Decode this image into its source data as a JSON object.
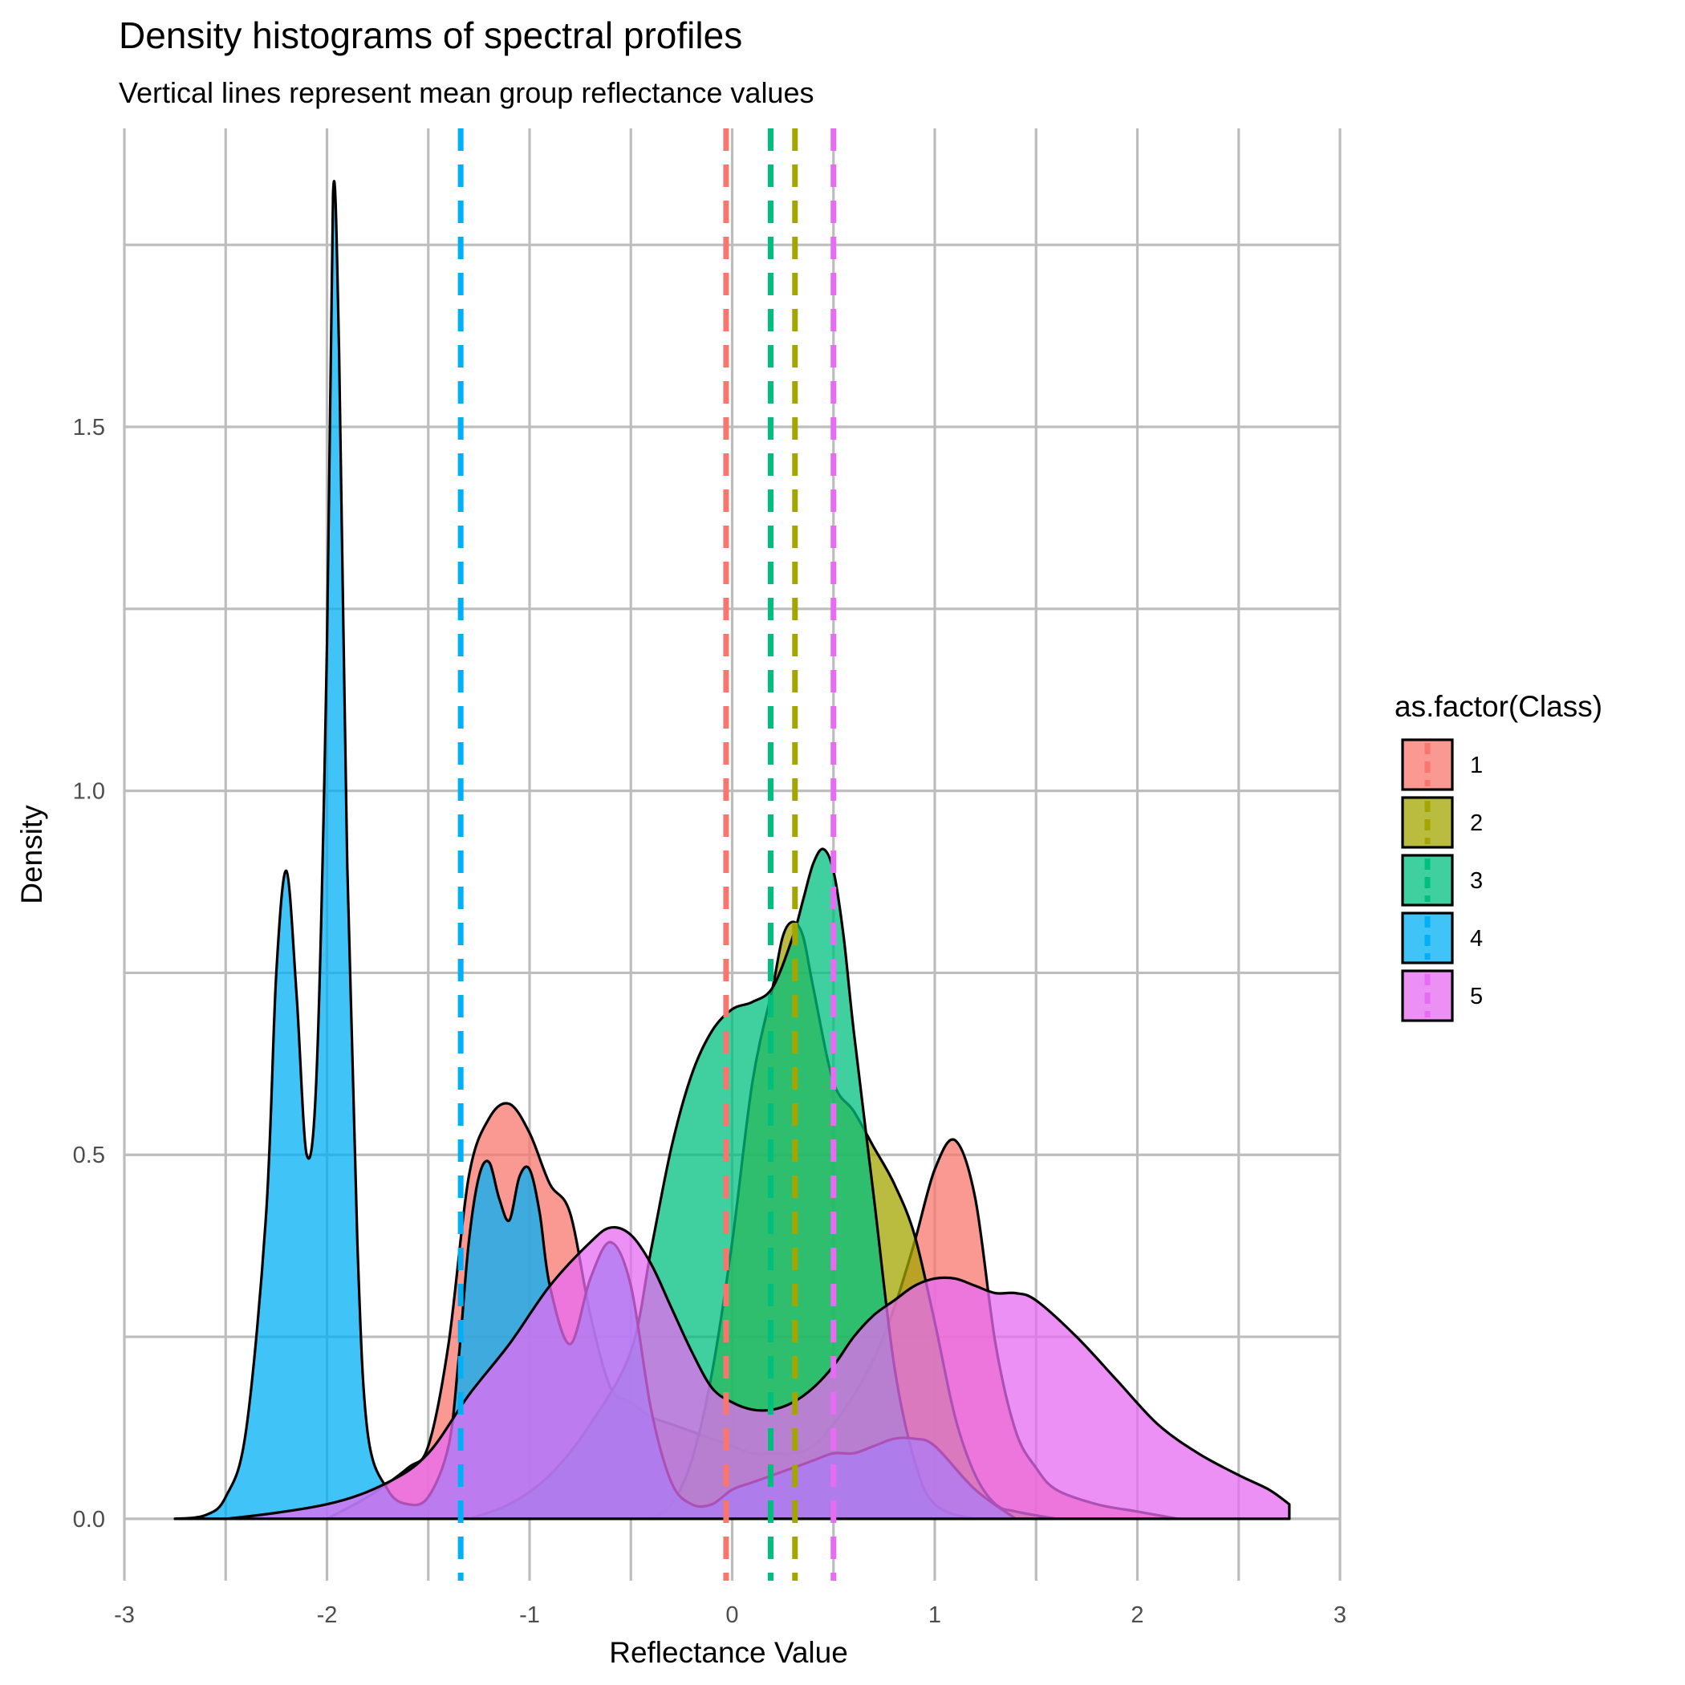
{
  "colors": {
    "1": "#F8766D",
    "2": "#A3A500",
    "3": "#00BF7D",
    "4": "#00B0F6",
    "5": "#E76BF3"
  },
  "chart_data": {
    "type": "area",
    "title": "Density histograms of spectral profiles",
    "subtitle": "Vertical lines represent mean group reflectance values",
    "xlabel": "Reflectance Value",
    "ylabel": "Density",
    "xlim": [
      -3,
      3
    ],
    "ylim": [
      -0.085,
      1.91
    ],
    "x_ticks": [
      -3,
      -2,
      -1,
      0,
      1,
      2,
      3
    ],
    "x_tick_labels": [
      "-3",
      "-2",
      "-1",
      "0",
      "1",
      "2",
      "3"
    ],
    "y_ticks": [
      0.0,
      0.5,
      1.0,
      1.5
    ],
    "y_tick_labels": [
      "0.0",
      "0.5",
      "1.0",
      "1.5"
    ],
    "grid": true,
    "fill_alpha": 0.75,
    "legend": {
      "title": "as.factor(Class)",
      "placement": "right",
      "entries": [
        "1",
        "2",
        "3",
        "4",
        "5"
      ]
    },
    "means": [
      {
        "class": "1",
        "x": -0.03
      },
      {
        "class": "2",
        "x": 0.31
      },
      {
        "class": "3",
        "x": 0.19
      },
      {
        "class": "4",
        "x": -1.34
      },
      {
        "class": "5",
        "x": 0.5
      }
    ],
    "series": [
      {
        "name": "1",
        "x": [
          -2.0,
          -1.8,
          -1.6,
          -1.5,
          -1.4,
          -1.3,
          -1.2,
          -1.1,
          -1.0,
          -0.9,
          -0.8,
          -0.7,
          -0.6,
          -0.5,
          -0.4,
          -0.3,
          -0.2,
          -0.1,
          0.0,
          0.1,
          0.2,
          0.3,
          0.4,
          0.5,
          0.6,
          0.7,
          0.8,
          0.9,
          1.0,
          1.1,
          1.2,
          1.3,
          1.4,
          1.5,
          1.6,
          1.8,
          2.0,
          2.2
        ],
        "y": [
          0.0,
          0.03,
          0.07,
          0.1,
          0.24,
          0.47,
          0.55,
          0.57,
          0.53,
          0.46,
          0.42,
          0.28,
          0.18,
          0.16,
          0.14,
          0.13,
          0.12,
          0.11,
          0.1,
          0.09,
          0.09,
          0.09,
          0.1,
          0.13,
          0.17,
          0.22,
          0.29,
          0.38,
          0.48,
          0.52,
          0.44,
          0.24,
          0.12,
          0.07,
          0.04,
          0.02,
          0.01,
          0.0
        ]
      },
      {
        "name": "2",
        "x": [
          -0.4,
          -0.3,
          -0.2,
          -0.1,
          0.0,
          0.1,
          0.2,
          0.25,
          0.3,
          0.35,
          0.4,
          0.5,
          0.6,
          0.7,
          0.8,
          0.9,
          1.0,
          1.1,
          1.2,
          1.3,
          1.4,
          1.6
        ],
        "y": [
          0.0,
          0.02,
          0.08,
          0.2,
          0.38,
          0.6,
          0.73,
          0.8,
          0.82,
          0.8,
          0.73,
          0.6,
          0.56,
          0.51,
          0.46,
          0.39,
          0.27,
          0.14,
          0.06,
          0.02,
          0.01,
          0.0
        ]
      },
      {
        "name": "3",
        "x": [
          -1.3,
          -1.1,
          -0.9,
          -0.7,
          -0.5,
          -0.4,
          -0.3,
          -0.2,
          -0.1,
          0.0,
          0.1,
          0.2,
          0.3,
          0.35,
          0.4,
          0.45,
          0.5,
          0.55,
          0.6,
          0.7,
          0.8,
          0.9,
          1.0,
          1.2,
          1.4
        ],
        "y": [
          0.0,
          0.02,
          0.06,
          0.13,
          0.23,
          0.37,
          0.51,
          0.61,
          0.67,
          0.7,
          0.71,
          0.73,
          0.8,
          0.85,
          0.9,
          0.92,
          0.89,
          0.8,
          0.67,
          0.44,
          0.21,
          0.08,
          0.02,
          0.0,
          0.0
        ]
      },
      {
        "name": "4",
        "x": [
          -2.75,
          -2.6,
          -2.5,
          -2.4,
          -2.3,
          -2.25,
          -2.2,
          -2.15,
          -2.1,
          -2.05,
          -2.0,
          -1.97,
          -1.94,
          -1.9,
          -1.85,
          -1.8,
          -1.7,
          -1.6,
          -1.5,
          -1.4,
          -1.35,
          -1.3,
          -1.25,
          -1.2,
          -1.15,
          -1.1,
          -1.05,
          -1.0,
          -0.95,
          -0.9,
          -0.8,
          -0.7,
          -0.6,
          -0.5,
          -0.4,
          -0.3,
          -0.2,
          -0.1,
          0.0,
          0.1,
          0.2,
          0.3,
          0.4,
          0.5,
          0.6,
          0.7,
          0.8,
          0.9,
          1.0,
          1.2,
          1.4
        ],
        "y": [
          0.0,
          0.005,
          0.03,
          0.12,
          0.42,
          0.75,
          0.89,
          0.72,
          0.5,
          0.62,
          1.2,
          1.82,
          1.6,
          0.9,
          0.38,
          0.12,
          0.04,
          0.02,
          0.03,
          0.1,
          0.22,
          0.38,
          0.47,
          0.49,
          0.44,
          0.41,
          0.47,
          0.48,
          0.42,
          0.32,
          0.24,
          0.33,
          0.38,
          0.32,
          0.15,
          0.05,
          0.02,
          0.02,
          0.04,
          0.05,
          0.06,
          0.07,
          0.08,
          0.09,
          0.09,
          0.1,
          0.11,
          0.11,
          0.1,
          0.04,
          0.0
        ]
      },
      {
        "name": "5",
        "x": [
          -2.75,
          -2.5,
          -2.0,
          -1.7,
          -1.5,
          -1.3,
          -1.1,
          -0.9,
          -0.7,
          -0.6,
          -0.5,
          -0.4,
          -0.3,
          -0.2,
          -0.1,
          0.0,
          0.1,
          0.2,
          0.3,
          0.4,
          0.5,
          0.6,
          0.7,
          0.8,
          0.9,
          1.0,
          1.1,
          1.2,
          1.3,
          1.4,
          1.5,
          1.7,
          1.9,
          2.1,
          2.3,
          2.5,
          2.65,
          2.75
        ],
        "y": [
          0.0,
          0.0,
          0.02,
          0.05,
          0.09,
          0.17,
          0.24,
          0.32,
          0.38,
          0.4,
          0.39,
          0.35,
          0.29,
          0.23,
          0.18,
          0.16,
          0.15,
          0.15,
          0.16,
          0.18,
          0.21,
          0.25,
          0.28,
          0.3,
          0.32,
          0.33,
          0.33,
          0.32,
          0.31,
          0.31,
          0.3,
          0.25,
          0.19,
          0.13,
          0.09,
          0.06,
          0.04,
          0.02
        ]
      }
    ]
  }
}
